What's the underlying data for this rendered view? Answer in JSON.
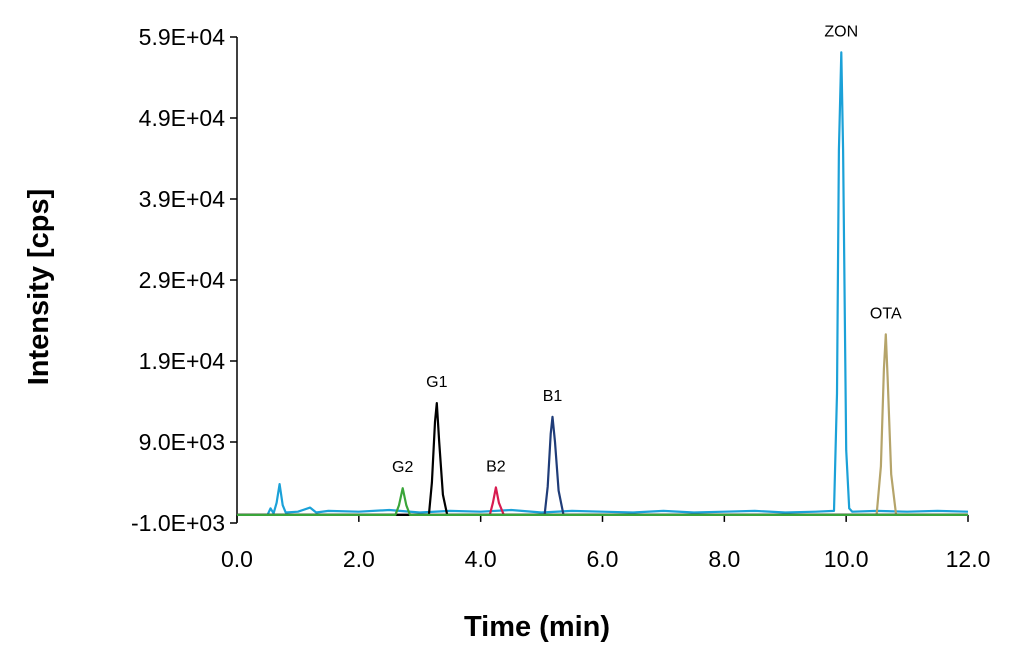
{
  "chart_data": {
    "type": "line",
    "x_label": "Time (min)",
    "y_label": "Intensity [cps]",
    "xlim": [
      0,
      12
    ],
    "ylim": [
      -1000,
      59000
    ],
    "xticks": [
      {
        "value": 0,
        "label": "0.0"
      },
      {
        "value": 2,
        "label": "2.0"
      },
      {
        "value": 4,
        "label": "4.0"
      },
      {
        "value": 6,
        "label": "6.0"
      },
      {
        "value": 8,
        "label": "8.0"
      },
      {
        "value": 10,
        "label": "10.0"
      },
      {
        "value": 12,
        "label": "12.0"
      }
    ],
    "yticks": [
      {
        "value": -1000,
        "label": "-1.0E+03"
      },
      {
        "value": 9000,
        "label": "9.0E+03"
      },
      {
        "value": 19000,
        "label": "1.9E+04"
      },
      {
        "value": 29000,
        "label": "2.9E+04"
      },
      {
        "value": 39000,
        "label": "3.9E+04"
      },
      {
        "value": 49000,
        "label": "4.9E+04"
      },
      {
        "value": 59000,
        "label": "5.9E+04"
      }
    ],
    "series": [
      {
        "name": "G2",
        "color": "#3aa53a",
        "x": [
          0,
          2.6,
          2.66,
          2.72,
          2.78,
          2.84,
          12
        ],
        "values": [
          0,
          0,
          1200,
          3300,
          1200,
          0,
          0
        ]
      },
      {
        "name": "G1",
        "color": "#000000",
        "x": [
          0,
          3.15,
          3.2,
          3.25,
          3.28,
          3.32,
          3.38,
          3.45,
          12
        ],
        "values": [
          0,
          0,
          4000,
          11500,
          13800,
          9000,
          2500,
          0,
          0
        ]
      },
      {
        "name": "B2",
        "color": "#d81b50",
        "x": [
          0,
          4.15,
          4.2,
          4.25,
          4.3,
          4.38,
          12
        ],
        "values": [
          0,
          0,
          1500,
          3400,
          1500,
          0,
          0
        ]
      },
      {
        "name": "B1",
        "color": "#1f3c78",
        "x": [
          0,
          5.05,
          5.1,
          5.15,
          5.18,
          5.22,
          5.28,
          5.36,
          12
        ],
        "values": [
          0,
          0,
          3500,
          10000,
          12100,
          9000,
          3000,
          0,
          0
        ]
      },
      {
        "name": "OTA",
        "color": "#b5a46a",
        "x": [
          0,
          10.5,
          10.57,
          10.62,
          10.65,
          10.68,
          10.74,
          10.82,
          12
        ],
        "values": [
          0,
          0,
          6000,
          18000,
          22300,
          17000,
          5000,
          0,
          0
        ]
      },
      {
        "name": "ZON",
        "color": "#1ba1d8",
        "x": [
          0,
          0.5,
          0.55,
          0.6,
          0.65,
          0.7,
          0.75,
          0.8,
          1.0,
          1.2,
          1.3,
          1.5,
          2.0,
          2.5,
          3.0,
          3.5,
          4.0,
          4.5,
          5.0,
          5.5,
          6.0,
          6.5,
          7.0,
          7.5,
          8.0,
          8.5,
          9.0,
          9.5,
          9.8,
          9.85,
          9.88,
          9.92,
          9.95,
          10.0,
          10.05,
          10.1,
          10.5,
          11.0,
          11.5,
          12.0
        ],
        "values": [
          0,
          0,
          800,
          200,
          1500,
          3800,
          1200,
          300,
          400,
          900,
          300,
          500,
          400,
          600,
          300,
          500,
          400,
          600,
          300,
          500,
          400,
          300,
          500,
          300,
          400,
          500,
          300,
          400,
          500,
          15000,
          45000,
          57100,
          45000,
          8000,
          800,
          400,
          500,
          400,
          500,
          400
        ]
      }
    ]
  }
}
